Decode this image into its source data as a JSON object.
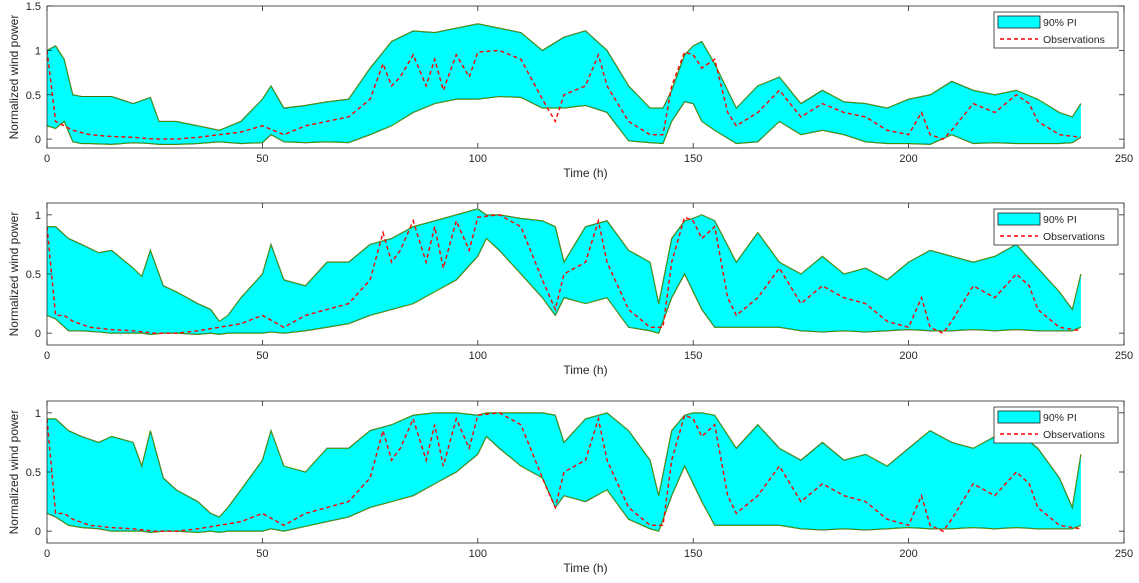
{
  "chart_data": [
    {
      "type": "area",
      "xlabel": "Time (h)",
      "ylabel": "Normalized wind power",
      "xlim": [
        0,
        250
      ],
      "ylim": [
        -0.1,
        1.5
      ],
      "xticks": [
        0,
        50,
        100,
        150,
        200,
        250
      ],
      "xtick_labels": [
        "0",
        "50",
        "100",
        "150",
        "200",
        "250"
      ],
      "yticks": [
        0,
        0.5,
        1,
        1.5
      ],
      "ytick_labels": [
        "0",
        "0.5",
        "1",
        "1.5"
      ],
      "legend": {
        "position": "top-right",
        "entries": [
          "90% PI",
          "Observations"
        ]
      },
      "grid": false,
      "series": [
        {
          "name": "90% PI",
          "style": "filled band",
          "color": "#00ffff",
          "x": [
            0,
            2,
            4,
            6,
            8,
            10,
            15,
            20,
            24,
            26,
            30,
            35,
            40,
            45,
            50,
            52,
            55,
            60,
            65,
            70,
            75,
            80,
            85,
            90,
            95,
            100,
            105,
            110,
            115,
            120,
            125,
            130,
            135,
            140,
            143,
            145,
            148,
            150,
            152,
            155,
            160,
            165,
            170,
            175,
            180,
            185,
            190,
            195,
            200,
            205,
            210,
            215,
            220,
            225,
            230,
            235,
            238,
            240
          ],
          "upper": [
            1.0,
            1.05,
            0.9,
            0.5,
            0.48,
            0.48,
            0.48,
            0.4,
            0.47,
            0.2,
            0.2,
            0.15,
            0.1,
            0.2,
            0.45,
            0.6,
            0.35,
            0.38,
            0.42,
            0.45,
            0.8,
            1.1,
            1.22,
            1.2,
            1.25,
            1.3,
            1.25,
            1.2,
            1.0,
            1.15,
            1.22,
            1.0,
            0.6,
            0.35,
            0.35,
            0.55,
            0.95,
            1.05,
            1.1,
            0.85,
            0.35,
            0.6,
            0.7,
            0.4,
            0.55,
            0.42,
            0.4,
            0.35,
            0.45,
            0.5,
            0.65,
            0.55,
            0.5,
            0.55,
            0.45,
            0.3,
            0.25,
            0.4
          ],
          "lower": [
            0.15,
            0.12,
            0.2,
            -0.03,
            -0.05,
            -0.05,
            -0.06,
            -0.04,
            -0.05,
            -0.06,
            -0.06,
            -0.05,
            -0.03,
            -0.05,
            -0.04,
            0.05,
            -0.03,
            -0.04,
            -0.03,
            -0.04,
            0.05,
            0.15,
            0.3,
            0.4,
            0.45,
            0.45,
            0.48,
            0.47,
            0.35,
            0.35,
            0.38,
            0.3,
            -0.02,
            -0.04,
            -0.05,
            0.2,
            0.42,
            0.4,
            0.2,
            0.1,
            -0.05,
            -0.03,
            0.2,
            0.05,
            0.1,
            0.05,
            -0.03,
            -0.05,
            -0.05,
            -0.06,
            0.05,
            -0.05,
            -0.04,
            -0.05,
            -0.05,
            -0.05,
            -0.04,
            0.02
          ]
        },
        {
          "name": "Observations",
          "style": "dashed",
          "color": "#ff0000",
          "x": [
            0,
            2,
            4,
            6,
            10,
            15,
            20,
            25,
            30,
            35,
            40,
            45,
            50,
            55,
            60,
            65,
            70,
            75,
            78,
            80,
            82,
            85,
            88,
            90,
            92,
            95,
            98,
            100,
            105,
            110,
            115,
            118,
            120,
            125,
            128,
            130,
            135,
            140,
            143,
            145,
            148,
            150,
            152,
            155,
            158,
            160,
            165,
            170,
            175,
            180,
            185,
            190,
            195,
            200,
            203,
            205,
            208,
            210,
            215,
            220,
            225,
            228,
            230,
            235,
            240
          ],
          "y": [
            1.0,
            0.2,
            0.15,
            0.1,
            0.05,
            0.03,
            0.02,
            0.0,
            0.0,
            0.02,
            0.05,
            0.08,
            0.15,
            0.05,
            0.15,
            0.2,
            0.25,
            0.45,
            0.85,
            0.6,
            0.7,
            0.95,
            0.6,
            0.9,
            0.55,
            0.95,
            0.7,
            0.98,
            1.0,
            0.9,
            0.45,
            0.2,
            0.5,
            0.6,
            0.95,
            0.6,
            0.2,
            0.05,
            0.05,
            0.6,
            0.98,
            0.95,
            0.8,
            0.9,
            0.3,
            0.15,
            0.3,
            0.55,
            0.25,
            0.4,
            0.3,
            0.25,
            0.1,
            0.05,
            0.3,
            0.05,
            0.0,
            0.1,
            0.4,
            0.3,
            0.5,
            0.4,
            0.2,
            0.05,
            0.02
          ]
        }
      ]
    },
    {
      "type": "area",
      "xlabel": "Time (h)",
      "ylabel": "Normalized wind power",
      "xlim": [
        0,
        250
      ],
      "ylim": [
        -0.1,
        1.1
      ],
      "xticks": [
        0,
        50,
        100,
        150,
        200,
        250
      ],
      "xtick_labels": [
        "0",
        "50",
        "100",
        "150",
        "200",
        "250"
      ],
      "yticks": [
        0,
        0.5,
        1
      ],
      "ytick_labels": [
        "0",
        "0.5",
        "1"
      ],
      "legend": {
        "position": "top-right",
        "entries": [
          "90% PI",
          "Observations"
        ]
      },
      "grid": false,
      "series": [
        {
          "name": "90% PI",
          "style": "filled band",
          "color": "#00ffff",
          "x": [
            0,
            2,
            5,
            8,
            12,
            15,
            20,
            22,
            24,
            27,
            30,
            35,
            38,
            40,
            42,
            45,
            50,
            52,
            55,
            60,
            65,
            70,
            75,
            80,
            85,
            90,
            95,
            100,
            102,
            105,
            110,
            115,
            118,
            120,
            125,
            130,
            135,
            140,
            142,
            145,
            148,
            150,
            152,
            155,
            160,
            165,
            170,
            175,
            180,
            185,
            190,
            195,
            200,
            205,
            210,
            215,
            220,
            225,
            230,
            235,
            238,
            240
          ],
          "upper": [
            0.9,
            0.9,
            0.8,
            0.75,
            0.68,
            0.7,
            0.55,
            0.48,
            0.7,
            0.4,
            0.35,
            0.25,
            0.2,
            0.1,
            0.15,
            0.3,
            0.5,
            0.75,
            0.45,
            0.4,
            0.6,
            0.6,
            0.75,
            0.8,
            0.9,
            0.95,
            1.0,
            1.05,
            1.0,
            1.0,
            0.97,
            0.95,
            0.9,
            0.6,
            0.9,
            0.95,
            0.7,
            0.6,
            0.25,
            0.8,
            0.95,
            0.97,
            1.0,
            0.95,
            0.6,
            0.85,
            0.6,
            0.5,
            0.65,
            0.5,
            0.55,
            0.45,
            0.6,
            0.7,
            0.65,
            0.6,
            0.65,
            0.75,
            0.55,
            0.35,
            0.2,
            0.5
          ],
          "lower": [
            0.15,
            0.12,
            0.02,
            0.02,
            0.01,
            0.0,
            0.0,
            0.0,
            -0.01,
            0.0,
            0.0,
            -0.01,
            0.0,
            -0.01,
            0.0,
            0.0,
            0.0,
            0.01,
            0.0,
            0.02,
            0.05,
            0.08,
            0.15,
            0.2,
            0.25,
            0.35,
            0.45,
            0.65,
            0.8,
            0.7,
            0.5,
            0.3,
            0.15,
            0.3,
            0.25,
            0.3,
            0.05,
            0.02,
            0.0,
            0.3,
            0.5,
            0.35,
            0.2,
            0.05,
            0.05,
            0.05,
            0.05,
            0.02,
            0.01,
            0.02,
            0.01,
            0.02,
            0.03,
            0.02,
            0.02,
            0.03,
            0.02,
            0.03,
            0.02,
            0.02,
            0.02,
            0.05
          ]
        },
        {
          "name": "Observations",
          "style": "dashed",
          "color": "#ff0000",
          "x": [
            0,
            2,
            4,
            6,
            10,
            15,
            20,
            25,
            30,
            35,
            40,
            45,
            50,
            55,
            60,
            65,
            70,
            75,
            78,
            80,
            82,
            85,
            88,
            90,
            92,
            95,
            98,
            100,
            105,
            110,
            115,
            118,
            120,
            125,
            128,
            130,
            135,
            140,
            143,
            145,
            148,
            150,
            152,
            155,
            158,
            160,
            165,
            170,
            175,
            180,
            185,
            190,
            195,
            200,
            203,
            205,
            208,
            210,
            215,
            220,
            225,
            228,
            230,
            235,
            240
          ],
          "y": [
            0.9,
            0.15,
            0.15,
            0.1,
            0.05,
            0.03,
            0.02,
            0.0,
            0.0,
            0.02,
            0.05,
            0.08,
            0.15,
            0.05,
            0.15,
            0.2,
            0.25,
            0.45,
            0.85,
            0.6,
            0.7,
            0.95,
            0.6,
            0.9,
            0.55,
            0.95,
            0.7,
            0.98,
            1.0,
            0.9,
            0.45,
            0.2,
            0.5,
            0.6,
            0.95,
            0.6,
            0.2,
            0.05,
            0.05,
            0.6,
            0.98,
            0.95,
            0.8,
            0.9,
            0.3,
            0.15,
            0.3,
            0.55,
            0.25,
            0.4,
            0.3,
            0.25,
            0.1,
            0.05,
            0.3,
            0.05,
            0.0,
            0.1,
            0.4,
            0.3,
            0.5,
            0.4,
            0.2,
            0.05,
            0.02
          ]
        }
      ]
    },
    {
      "type": "area",
      "xlabel": "Time (h)",
      "ylabel": "Normalized wind power",
      "xlim": [
        0,
        250
      ],
      "ylim": [
        -0.1,
        1.1
      ],
      "xticks": [
        0,
        50,
        100,
        150,
        200,
        250
      ],
      "xtick_labels": [
        "0",
        "50",
        "100",
        "150",
        "200",
        "250"
      ],
      "yticks": [
        0,
        0.5,
        1
      ],
      "ytick_labels": [
        "0",
        "0.5",
        "1"
      ],
      "legend": {
        "position": "top-right",
        "entries": [
          "90% PI",
          "Observations"
        ]
      },
      "grid": false,
      "series": [
        {
          "name": "90% PI",
          "style": "filled band",
          "color": "#00ffff",
          "x": [
            0,
            2,
            5,
            8,
            12,
            15,
            20,
            22,
            24,
            27,
            30,
            35,
            38,
            40,
            42,
            45,
            50,
            52,
            55,
            60,
            65,
            70,
            75,
            80,
            85,
            90,
            95,
            100,
            102,
            105,
            110,
            115,
            118,
            120,
            125,
            130,
            135,
            140,
            142,
            145,
            148,
            150,
            152,
            155,
            160,
            165,
            170,
            175,
            180,
            185,
            190,
            195,
            200,
            205,
            210,
            215,
            220,
            225,
            230,
            235,
            238,
            240
          ],
          "upper": [
            0.95,
            0.95,
            0.85,
            0.8,
            0.75,
            0.8,
            0.75,
            0.55,
            0.85,
            0.45,
            0.35,
            0.25,
            0.15,
            0.12,
            0.2,
            0.35,
            0.6,
            0.85,
            0.55,
            0.5,
            0.7,
            0.7,
            0.85,
            0.9,
            0.98,
            1.0,
            1.0,
            0.98,
            1.0,
            1.0,
            1.0,
            1.0,
            0.98,
            0.75,
            0.95,
            1.0,
            0.85,
            0.6,
            0.3,
            0.85,
            0.98,
            1.0,
            1.0,
            0.98,
            0.7,
            0.9,
            0.7,
            0.6,
            0.75,
            0.6,
            0.65,
            0.55,
            0.7,
            0.85,
            0.75,
            0.7,
            0.8,
            0.85,
            0.7,
            0.45,
            0.2,
            0.65
          ],
          "lower": [
            0.15,
            0.12,
            0.05,
            0.03,
            0.02,
            0.0,
            0.0,
            0.0,
            -0.01,
            0.0,
            0.0,
            -0.01,
            0.0,
            -0.01,
            0.0,
            0.0,
            0.0,
            0.02,
            0.0,
            0.04,
            0.08,
            0.12,
            0.2,
            0.25,
            0.3,
            0.4,
            0.5,
            0.65,
            0.8,
            0.7,
            0.55,
            0.45,
            0.2,
            0.3,
            0.25,
            0.35,
            0.1,
            0.02,
            0.0,
            0.3,
            0.55,
            0.4,
            0.25,
            0.05,
            0.05,
            0.05,
            0.05,
            0.02,
            0.01,
            0.02,
            0.01,
            0.02,
            0.03,
            0.02,
            0.02,
            0.03,
            0.02,
            0.03,
            0.02,
            0.02,
            0.02,
            0.05
          ]
        },
        {
          "name": "Observations",
          "style": "dashed",
          "color": "#ff0000",
          "x": [
            0,
            2,
            4,
            6,
            10,
            15,
            20,
            25,
            30,
            35,
            40,
            45,
            50,
            55,
            60,
            65,
            70,
            75,
            78,
            80,
            82,
            85,
            88,
            90,
            92,
            95,
            98,
            100,
            105,
            110,
            115,
            118,
            120,
            125,
            128,
            130,
            135,
            140,
            143,
            145,
            148,
            150,
            152,
            155,
            158,
            160,
            165,
            170,
            175,
            180,
            185,
            190,
            195,
            200,
            203,
            205,
            208,
            210,
            215,
            220,
            225,
            228,
            230,
            235,
            240
          ],
          "y": [
            0.95,
            0.15,
            0.15,
            0.1,
            0.05,
            0.03,
            0.02,
            0.0,
            0.0,
            0.02,
            0.05,
            0.08,
            0.15,
            0.05,
            0.15,
            0.2,
            0.25,
            0.45,
            0.85,
            0.6,
            0.7,
            0.95,
            0.6,
            0.9,
            0.55,
            0.95,
            0.7,
            0.98,
            1.0,
            0.9,
            0.45,
            0.2,
            0.5,
            0.6,
            0.95,
            0.6,
            0.2,
            0.05,
            0.05,
            0.6,
            0.98,
            0.95,
            0.8,
            0.9,
            0.3,
            0.15,
            0.3,
            0.55,
            0.25,
            0.4,
            0.3,
            0.25,
            0.1,
            0.05,
            0.3,
            0.05,
            0.0,
            0.1,
            0.4,
            0.3,
            0.5,
            0.4,
            0.2,
            0.05,
            0.02
          ]
        }
      ]
    }
  ]
}
